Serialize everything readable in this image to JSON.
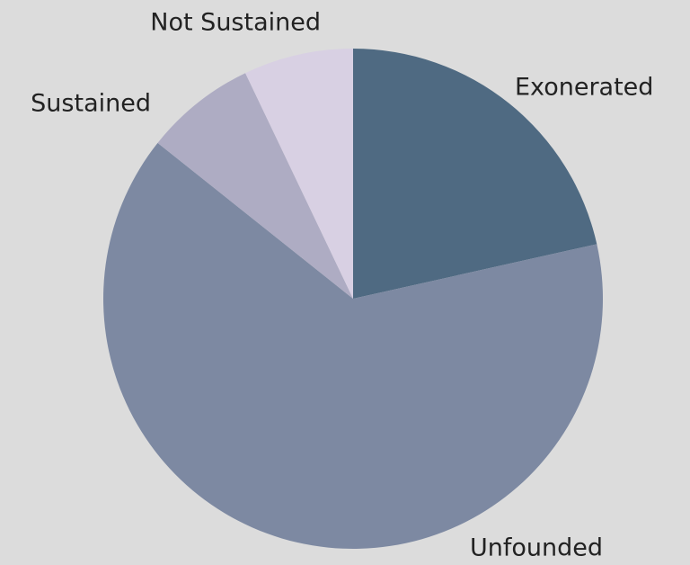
{
  "chart_data": {
    "type": "pie",
    "categories": [
      "Exonerated",
      "Unfounded",
      "Sustained",
      "Not Sustained"
    ],
    "values": [
      21.5,
      64.2,
      7.2,
      7.1
    ],
    "colors": [
      "#4f6a82",
      "#7d89a2",
      "#aeacc3",
      "#d8d0e3"
    ]
  }
}
